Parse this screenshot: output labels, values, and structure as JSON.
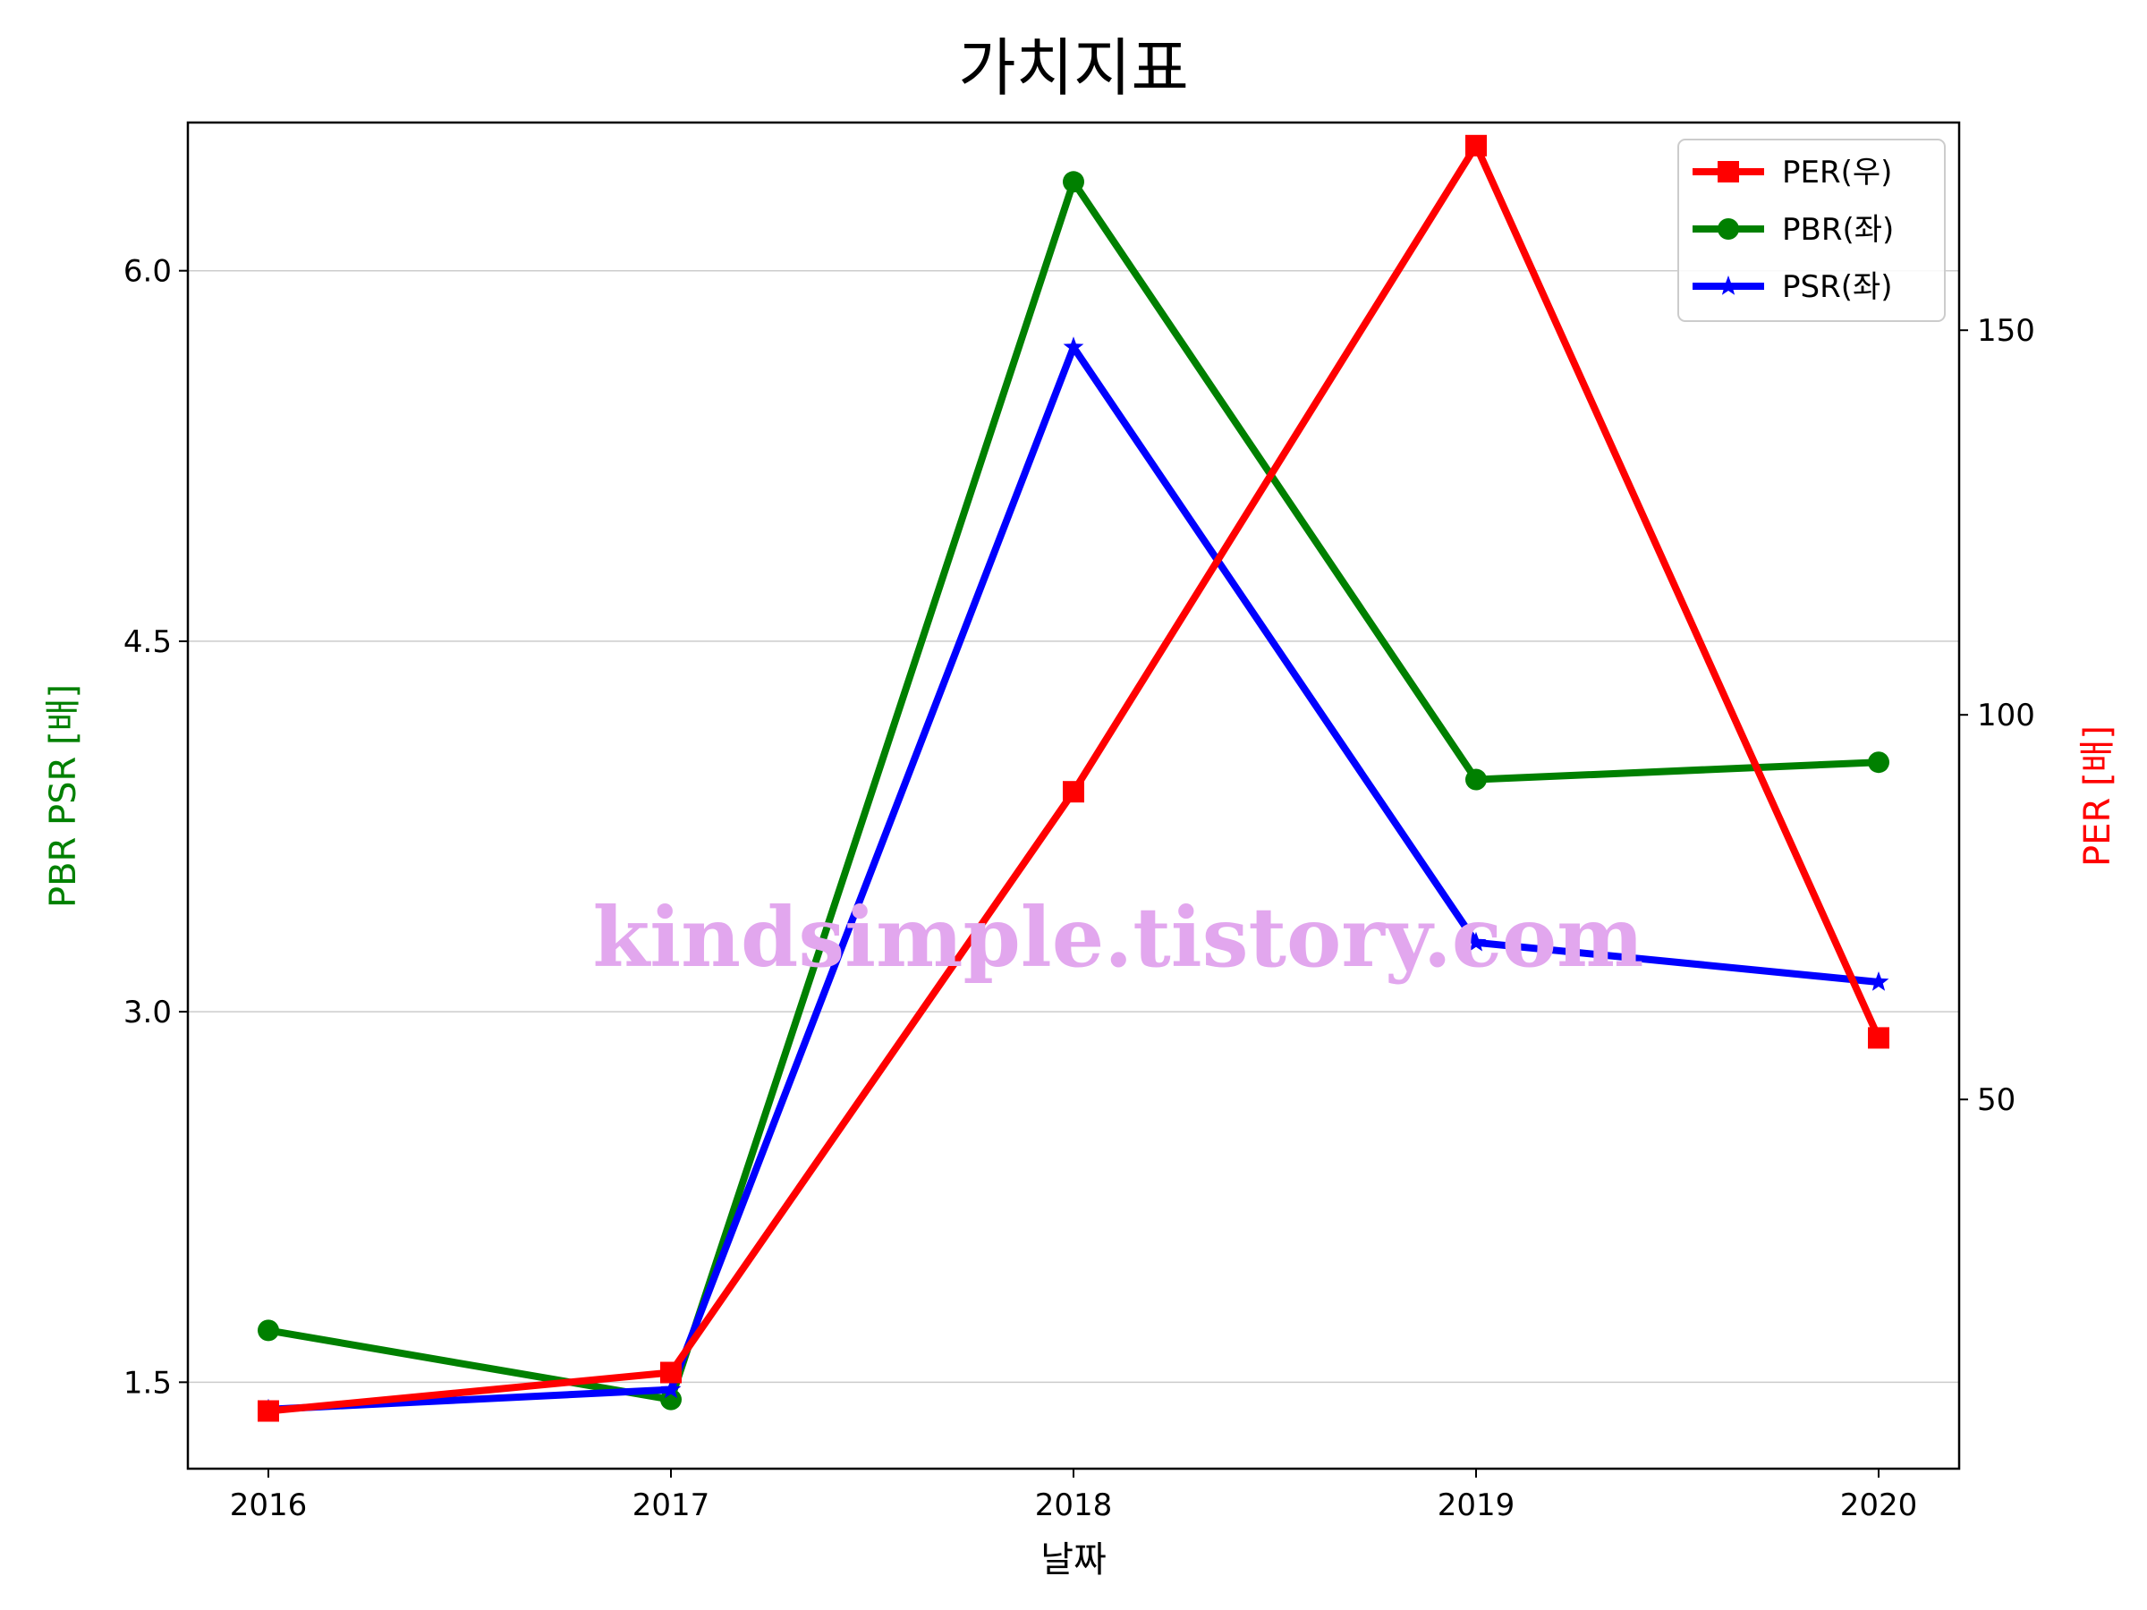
{
  "chart_data": {
    "type": "line",
    "title": "가치지표",
    "xlabel": "날짜",
    "ylabel_left": "PBR PSR [배]",
    "ylabel_right": "PER [배]",
    "categories": [
      "2016",
      "2017",
      "2018",
      "2019",
      "2020"
    ],
    "left_axis": {
      "ylim": [
        1.15,
        6.6
      ],
      "ticks": [
        "1.5",
        "3.0",
        "4.5",
        "6.0"
      ],
      "tick_values": [
        1.5,
        3.0,
        4.5,
        6.0
      ]
    },
    "right_axis": {
      "ylim": [
        2.0,
        177.0
      ],
      "ticks": [
        "50",
        "100",
        "150"
      ],
      "tick_values": [
        50,
        100,
        150
      ]
    },
    "grid": "horizontal",
    "legend_position": "upper right",
    "series": [
      {
        "name": "PER(우)",
        "axis": "right",
        "color": "#ff0000",
        "marker": "square",
        "values": [
          9.5,
          14.5,
          90,
          174,
          58
        ]
      },
      {
        "name": "PBR(좌)",
        "axis": "left",
        "color": "#008000",
        "marker": "circle",
        "values": [
          1.71,
          1.43,
          6.36,
          3.94,
          4.01
        ]
      },
      {
        "name": "PSR(좌)",
        "axis": "left",
        "color": "#0000ff",
        "marker": "star",
        "values": [
          1.39,
          1.47,
          5.69,
          3.28,
          3.12
        ]
      }
    ]
  },
  "watermark": "kindsimple.tistory.com"
}
